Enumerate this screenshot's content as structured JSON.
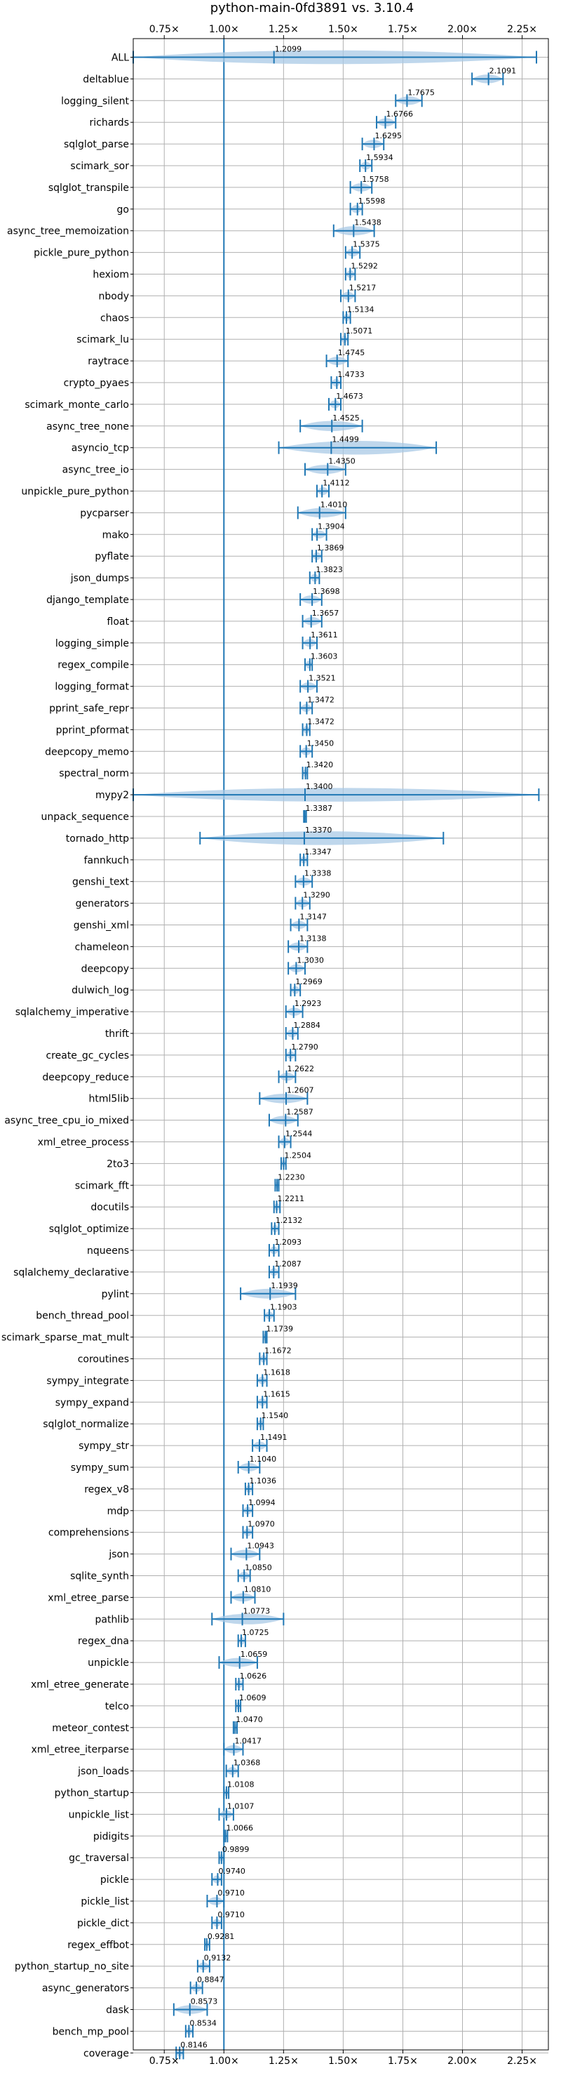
{
  "chart_data": {
    "type": "violin",
    "title": "python-main-0fd3891 vs. 3.10.4",
    "xlabel": "",
    "ylabel": "",
    "xlim": [
      0.62,
      2.36
    ],
    "x_ticks": [
      0.75,
      1.0,
      1.25,
      1.5,
      1.75,
      2.0,
      2.25
    ],
    "x_tick_labels": [
      "0.75×",
      "1.00×",
      "1.25×",
      "1.50×",
      "1.75×",
      "2.00×",
      "2.25×"
    ],
    "x_tick_labels_position": [
      "top",
      "bottom"
    ],
    "reference_line": 1.0,
    "grid": true,
    "colors": {
      "accent": "#1f77b4",
      "violin": "#a9c9e6",
      "grid": "#b0b0b0",
      "axis": "#000000"
    },
    "benchmarks": [
      {
        "name": "ALL",
        "value": 1.2099,
        "min": 0.62,
        "max": 2.31
      },
      {
        "name": "deltablue",
        "value": 2.1091,
        "min": 2.04,
        "max": 2.17
      },
      {
        "name": "logging_silent",
        "value": 1.7675,
        "min": 1.72,
        "max": 1.83
      },
      {
        "name": "richards",
        "value": 1.6766,
        "min": 1.64,
        "max": 1.72
      },
      {
        "name": "sqlglot_parse",
        "value": 1.6295,
        "min": 1.58,
        "max": 1.67
      },
      {
        "name": "scimark_sor",
        "value": 1.5934,
        "min": 1.57,
        "max": 1.62
      },
      {
        "name": "sqlglot_transpile",
        "value": 1.5758,
        "min": 1.53,
        "max": 1.62
      },
      {
        "name": "go",
        "value": 1.5598,
        "min": 1.53,
        "max": 1.58
      },
      {
        "name": "async_tree_memoization",
        "value": 1.5438,
        "min": 1.46,
        "max": 1.63
      },
      {
        "name": "pickle_pure_python",
        "value": 1.5375,
        "min": 1.51,
        "max": 1.57
      },
      {
        "name": "hexiom",
        "value": 1.5292,
        "min": 1.51,
        "max": 1.55
      },
      {
        "name": "nbody",
        "value": 1.5217,
        "min": 1.49,
        "max": 1.55
      },
      {
        "name": "chaos",
        "value": 1.5134,
        "min": 1.5,
        "max": 1.53
      },
      {
        "name": "scimark_lu",
        "value": 1.5071,
        "min": 1.49,
        "max": 1.52
      },
      {
        "name": "raytrace",
        "value": 1.4745,
        "min": 1.43,
        "max": 1.52
      },
      {
        "name": "crypto_pyaes",
        "value": 1.4733,
        "min": 1.45,
        "max": 1.49
      },
      {
        "name": "scimark_monte_carlo",
        "value": 1.4673,
        "min": 1.44,
        "max": 1.49
      },
      {
        "name": "async_tree_none",
        "value": 1.4525,
        "min": 1.32,
        "max": 1.58
      },
      {
        "name": "asyncio_tcp",
        "value": 1.4499,
        "min": 1.23,
        "max": 1.89
      },
      {
        "name": "async_tree_io",
        "value": 1.435,
        "min": 1.34,
        "max": 1.51
      },
      {
        "name": "unpickle_pure_python",
        "value": 1.4112,
        "min": 1.39,
        "max": 1.44
      },
      {
        "name": "pycparser",
        "value": 1.401,
        "min": 1.31,
        "max": 1.51
      },
      {
        "name": "mako",
        "value": 1.3904,
        "min": 1.37,
        "max": 1.43
      },
      {
        "name": "pyflate",
        "value": 1.3869,
        "min": 1.37,
        "max": 1.41
      },
      {
        "name": "json_dumps",
        "value": 1.3823,
        "min": 1.36,
        "max": 1.4
      },
      {
        "name": "django_template",
        "value": 1.3698,
        "min": 1.32,
        "max": 1.41
      },
      {
        "name": "float",
        "value": 1.3657,
        "min": 1.33,
        "max": 1.41
      },
      {
        "name": "logging_simple",
        "value": 1.3611,
        "min": 1.33,
        "max": 1.39
      },
      {
        "name": "regex_compile",
        "value": 1.3603,
        "min": 1.34,
        "max": 1.37
      },
      {
        "name": "logging_format",
        "value": 1.3521,
        "min": 1.32,
        "max": 1.39
      },
      {
        "name": "pprint_safe_repr",
        "value": 1.3472,
        "min": 1.32,
        "max": 1.37
      },
      {
        "name": "pprint_pformat",
        "value": 1.3472,
        "min": 1.33,
        "max": 1.36
      },
      {
        "name": "deepcopy_memo",
        "value": 1.345,
        "min": 1.32,
        "max": 1.37
      },
      {
        "name": "spectral_norm",
        "value": 1.342,
        "min": 1.33,
        "max": 1.35
      },
      {
        "name": "mypy2",
        "value": 1.34,
        "min": 0.62,
        "max": 2.32
      },
      {
        "name": "unpack_sequence",
        "value": 1.3387,
        "min": 1.335,
        "max": 1.345
      },
      {
        "name": "tornado_http",
        "value": 1.337,
        "min": 0.9,
        "max": 1.92
      },
      {
        "name": "fannkuch",
        "value": 1.3347,
        "min": 1.32,
        "max": 1.35
      },
      {
        "name": "genshi_text",
        "value": 1.3338,
        "min": 1.3,
        "max": 1.37
      },
      {
        "name": "generators",
        "value": 1.329,
        "min": 1.3,
        "max": 1.36
      },
      {
        "name": "genshi_xml",
        "value": 1.3147,
        "min": 1.28,
        "max": 1.35
      },
      {
        "name": "chameleon",
        "value": 1.3138,
        "min": 1.27,
        "max": 1.35
      },
      {
        "name": "deepcopy",
        "value": 1.303,
        "min": 1.27,
        "max": 1.34
      },
      {
        "name": "dulwich_log",
        "value": 1.2969,
        "min": 1.28,
        "max": 1.32
      },
      {
        "name": "sqlalchemy_imperative",
        "value": 1.2923,
        "min": 1.26,
        "max": 1.33
      },
      {
        "name": "thrift",
        "value": 1.2884,
        "min": 1.26,
        "max": 1.31
      },
      {
        "name": "create_gc_cycles",
        "value": 1.279,
        "min": 1.26,
        "max": 1.3
      },
      {
        "name": "deepcopy_reduce",
        "value": 1.2622,
        "min": 1.23,
        "max": 1.3
      },
      {
        "name": "html5lib",
        "value": 1.2607,
        "min": 1.15,
        "max": 1.35
      },
      {
        "name": "async_tree_cpu_io_mixed",
        "value": 1.2587,
        "min": 1.19,
        "max": 1.31
      },
      {
        "name": "xml_etree_process",
        "value": 1.2544,
        "min": 1.23,
        "max": 1.28
      },
      {
        "name": "2to3",
        "value": 1.2504,
        "min": 1.24,
        "max": 1.26
      },
      {
        "name": "scimark_fft",
        "value": 1.223,
        "min": 1.215,
        "max": 1.23
      },
      {
        "name": "docutils",
        "value": 1.2211,
        "min": 1.21,
        "max": 1.235
      },
      {
        "name": "sqlglot_optimize",
        "value": 1.2132,
        "min": 1.2,
        "max": 1.23
      },
      {
        "name": "nqueens",
        "value": 1.2093,
        "min": 1.19,
        "max": 1.23
      },
      {
        "name": "sqlalchemy_declarative",
        "value": 1.2087,
        "min": 1.19,
        "max": 1.23
      },
      {
        "name": "pylint",
        "value": 1.1939,
        "min": 1.07,
        "max": 1.3
      },
      {
        "name": "bench_thread_pool",
        "value": 1.1903,
        "min": 1.17,
        "max": 1.21
      },
      {
        "name": "scimark_sparse_mat_mult",
        "value": 1.1739,
        "min": 1.165,
        "max": 1.18
      },
      {
        "name": "coroutines",
        "value": 1.1672,
        "min": 1.15,
        "max": 1.18
      },
      {
        "name": "sympy_integrate",
        "value": 1.1618,
        "min": 1.14,
        "max": 1.18
      },
      {
        "name": "sympy_expand",
        "value": 1.1615,
        "min": 1.14,
        "max": 1.18
      },
      {
        "name": "sqlglot_normalize",
        "value": 1.154,
        "min": 1.14,
        "max": 1.165
      },
      {
        "name": "sympy_str",
        "value": 1.1491,
        "min": 1.12,
        "max": 1.18
      },
      {
        "name": "sympy_sum",
        "value": 1.104,
        "min": 1.06,
        "max": 1.15
      },
      {
        "name": "regex_v8",
        "value": 1.1036,
        "min": 1.09,
        "max": 1.12
      },
      {
        "name": "mdp",
        "value": 1.0994,
        "min": 1.08,
        "max": 1.12
      },
      {
        "name": "comprehensions",
        "value": 1.097,
        "min": 1.08,
        "max": 1.12
      },
      {
        "name": "json",
        "value": 1.0943,
        "min": 1.03,
        "max": 1.15
      },
      {
        "name": "sqlite_synth",
        "value": 1.085,
        "min": 1.06,
        "max": 1.11
      },
      {
        "name": "xml_etree_parse",
        "value": 1.081,
        "min": 1.03,
        "max": 1.13
      },
      {
        "name": "pathlib",
        "value": 1.0773,
        "min": 0.95,
        "max": 1.25
      },
      {
        "name": "regex_dna",
        "value": 1.0725,
        "min": 1.06,
        "max": 1.09
      },
      {
        "name": "unpickle",
        "value": 1.0659,
        "min": 0.98,
        "max": 1.14
      },
      {
        "name": "xml_etree_generate",
        "value": 1.0626,
        "min": 1.05,
        "max": 1.08
      },
      {
        "name": "telco",
        "value": 1.0609,
        "min": 1.05,
        "max": 1.07
      },
      {
        "name": "meteor_contest",
        "value": 1.047,
        "min": 1.04,
        "max": 1.055
      },
      {
        "name": "xml_etree_iterparse",
        "value": 1.0417,
        "min": 1.0,
        "max": 1.08
      },
      {
        "name": "json_loads",
        "value": 1.0368,
        "min": 1.01,
        "max": 1.06
      },
      {
        "name": "python_startup",
        "value": 1.0108,
        "min": 1.0,
        "max": 1.02
      },
      {
        "name": "unpickle_list",
        "value": 1.0107,
        "min": 0.98,
        "max": 1.04
      },
      {
        "name": "pidigits",
        "value": 1.0066,
        "min": 1.0,
        "max": 1.015
      },
      {
        "name": "gc_traversal",
        "value": 0.9899,
        "min": 0.98,
        "max": 1.0
      },
      {
        "name": "pickle",
        "value": 0.974,
        "min": 0.95,
        "max": 0.99
      },
      {
        "name": "pickle_list",
        "value": 0.971,
        "min": 0.93,
        "max": 1.0
      },
      {
        "name": "pickle_dict",
        "value": 0.971,
        "min": 0.95,
        "max": 0.99
      },
      {
        "name": "regex_effbot",
        "value": 0.9281,
        "min": 0.92,
        "max": 0.94
      },
      {
        "name": "python_startup_no_site",
        "value": 0.9132,
        "min": 0.89,
        "max": 0.94
      },
      {
        "name": "async_generators",
        "value": 0.8847,
        "min": 0.86,
        "max": 0.91
      },
      {
        "name": "dask",
        "value": 0.8573,
        "min": 0.79,
        "max": 0.93
      },
      {
        "name": "bench_mp_pool",
        "value": 0.8534,
        "min": 0.84,
        "max": 0.87
      },
      {
        "name": "coverage",
        "value": 0.8146,
        "min": 0.8,
        "max": 0.83
      }
    ]
  }
}
